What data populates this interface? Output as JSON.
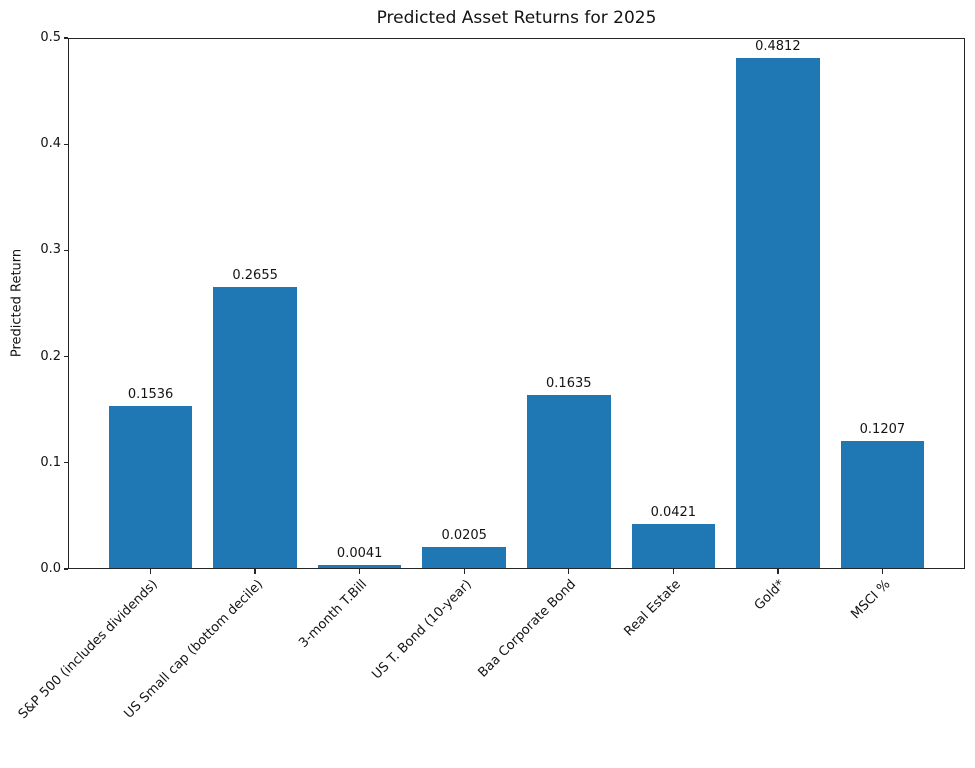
{
  "chart_data": {
    "type": "bar",
    "title": "Predicted Asset Returns for 2025",
    "xlabel": "",
    "ylabel": "Predicted Return",
    "categories": [
      "S&P 500 (includes dividends)",
      "US Small cap (bottom decile)",
      "3-month T.Bill",
      "US T. Bond (10-year)",
      "Baa Corporate Bond",
      "Real Estate",
      "Gold*",
      "MSCI %"
    ],
    "values": [
      0.1536,
      0.2655,
      0.0041,
      0.0205,
      0.1635,
      0.0421,
      0.4812,
      0.1207
    ],
    "value_labels": [
      "0.1536",
      "0.2655",
      "0.0041",
      "0.0205",
      "0.1635",
      "0.0421",
      "0.4812",
      "0.1207"
    ],
    "ylim": [
      0.0,
      0.5
    ],
    "yticks": [
      0.0,
      0.1,
      0.2,
      0.3,
      0.4,
      0.5
    ],
    "ytick_labels": [
      "0.0",
      "0.1",
      "0.2",
      "0.3",
      "0.4",
      "0.5"
    ],
    "bar_color": "#1f77b4",
    "axis_color": "#262626",
    "grid": false,
    "legend": "none"
  }
}
